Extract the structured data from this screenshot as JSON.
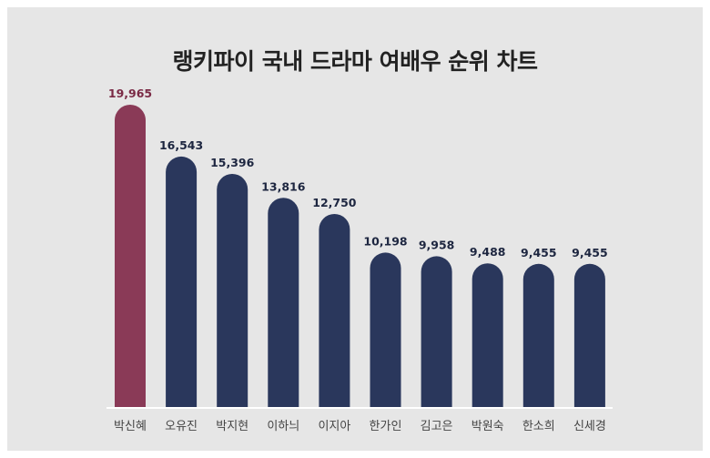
{
  "chart_data": {
    "type": "bar",
    "title": "랭키파이 국내 드라마 여배우 순위 차트",
    "categories": [
      "박신혜",
      "오유진",
      "박지현",
      "이하늬",
      "이지아",
      "한가인",
      "김고은",
      "박원숙",
      "한소희",
      "신세경"
    ],
    "values": [
      19965,
      16543,
      15396,
      13816,
      12750,
      10198,
      9958,
      9488,
      9455,
      9455
    ],
    "value_labels": [
      "19,965",
      "16,543",
      "15,396",
      "13,816",
      "12,750",
      "10,198",
      "9,958",
      "9,488",
      "9,455",
      "9,455"
    ],
    "highlight_index": 0,
    "colors": {
      "highlight": "#8a3a57",
      "highlight_label": "#7a2a45",
      "bar": "#2a375c",
      "label": "#1d2640",
      "baseline": "#ffffff"
    },
    "xlabel": "",
    "ylabel": "",
    "grid": false,
    "legend": "none"
  }
}
